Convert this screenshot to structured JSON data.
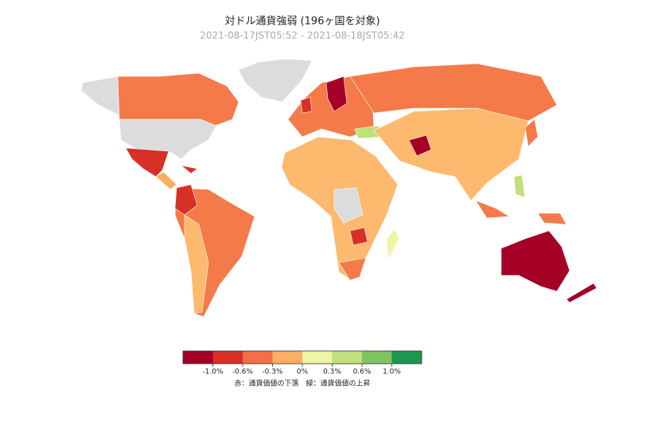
{
  "title": "対ドル通貨強弱 (196ヶ国を対象)",
  "subtitle": "2021-08-17JST05:52 - 2021-08-18JST05:42",
  "legend": {
    "colors": [
      "#a50026",
      "#d73027",
      "#f46d43",
      "#fdae61",
      "#eef5a3",
      "#bfe07a",
      "#7dc562",
      "#1a9850"
    ],
    "ticks": [
      {
        "value": -1.0,
        "label": "-1.0%"
      },
      {
        "value": -0.6,
        "label": "-0.6%"
      },
      {
        "value": -0.3,
        "label": "-0.3%"
      },
      {
        "value": 0,
        "label": "0%"
      },
      {
        "value": 0.3,
        "label": "0.3%"
      },
      {
        "value": 0.6,
        "label": "0.6%"
      },
      {
        "value": 1.0,
        "label": "1.0%"
      }
    ],
    "note": "赤：通貨価値の下落　緑：通貨価値の上昇"
  }
}
